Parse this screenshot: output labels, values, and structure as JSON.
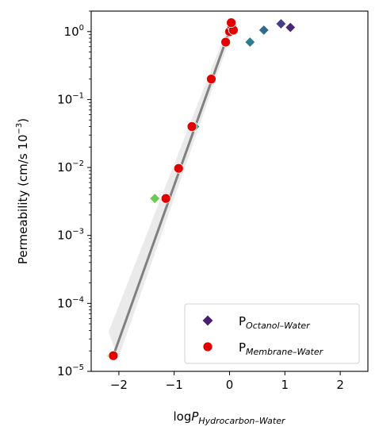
{
  "chart_data": {
    "type": "scatter",
    "xlabel": {
      "main": "log",
      "italic": "P",
      "sub": "Hydrocarbon–Water"
    },
    "ylabel": {
      "main": "Permeability (cm/s 10",
      "sup": "−3",
      "tail": ")"
    },
    "xlim": [
      -2.5,
      2.5
    ],
    "ylim": [
      1e-05,
      2.0
    ],
    "y_scale": "log",
    "grid": false,
    "legend_position": "lower-right",
    "x_ticks": [
      {
        "value": -2,
        "label": "−2"
      },
      {
        "value": -1,
        "label": "−1"
      },
      {
        "value": 0,
        "label": "0"
      },
      {
        "value": 1,
        "label": "1"
      },
      {
        "value": 2,
        "label": "2"
      }
    ],
    "y_ticks": [
      {
        "value": 1e-05,
        "base": "10",
        "exp": "−5"
      },
      {
        "value": 0.0001,
        "base": "10",
        "exp": "−4"
      },
      {
        "value": 0.001,
        "base": "10",
        "exp": "−3"
      },
      {
        "value": 0.01,
        "base": "10",
        "exp": "−2"
      },
      {
        "value": 0.1,
        "base": "10",
        "exp": "−1"
      },
      {
        "value": 1,
        "base": "10",
        "exp": "0"
      }
    ],
    "series": [
      {
        "name": {
          "main": "P",
          "sub": "Octanol–Water"
        },
        "marker": "diamond",
        "legend_color": "#4a1e6e",
        "points": [
          {
            "x": -2.13,
            "y": 1.7e-05,
            "color": "#c8dc3c"
          },
          {
            "x": -1.35,
            "y": 0.0035,
            "color": "#6cc850"
          },
          {
            "x": -0.63,
            "y": 0.04,
            "color": "#2ca089"
          },
          {
            "x": 0.37,
            "y": 0.7,
            "color": "#2a7c8e"
          },
          {
            "x": 0.62,
            "y": 1.05,
            "color": "#31688e"
          },
          {
            "x": 0.93,
            "y": 1.3,
            "color": "#433e85"
          },
          {
            "x": 1.1,
            "y": 1.15,
            "color": "#482878"
          }
        ]
      },
      {
        "name": {
          "main": "P",
          "sub": "Membrane–Water"
        },
        "marker": "circle",
        "legend_color": "#e00000",
        "points": [
          {
            "x": -2.1,
            "y": 1.7e-05,
            "color": "#e00000"
          },
          {
            "x": -1.15,
            "y": 0.0035,
            "color": "#e00000"
          },
          {
            "x": -0.92,
            "y": 0.0097,
            "color": "#e00000"
          },
          {
            "x": -0.68,
            "y": 0.04,
            "color": "#e00000"
          },
          {
            "x": -0.33,
            "y": 0.2,
            "color": "#e00000"
          },
          {
            "x": -0.07,
            "y": 0.7,
            "color": "#e00000"
          },
          {
            "x": 0.0,
            "y": 1.0,
            "color": "#e00000"
          },
          {
            "x": 0.04,
            "y": 1.2,
            "color": "#e00000"
          },
          {
            "x": 0.07,
            "y": 1.05,
            "color": "#e00000"
          },
          {
            "x": 0.03,
            "y": 1.35,
            "color": "#e00000"
          }
        ]
      }
    ],
    "fit_line": {
      "color": "#808080",
      "from": {
        "x": -2.1,
        "y": 1.7e-05
      },
      "to": {
        "x": 0.05,
        "y": 1.35
      }
    }
  }
}
